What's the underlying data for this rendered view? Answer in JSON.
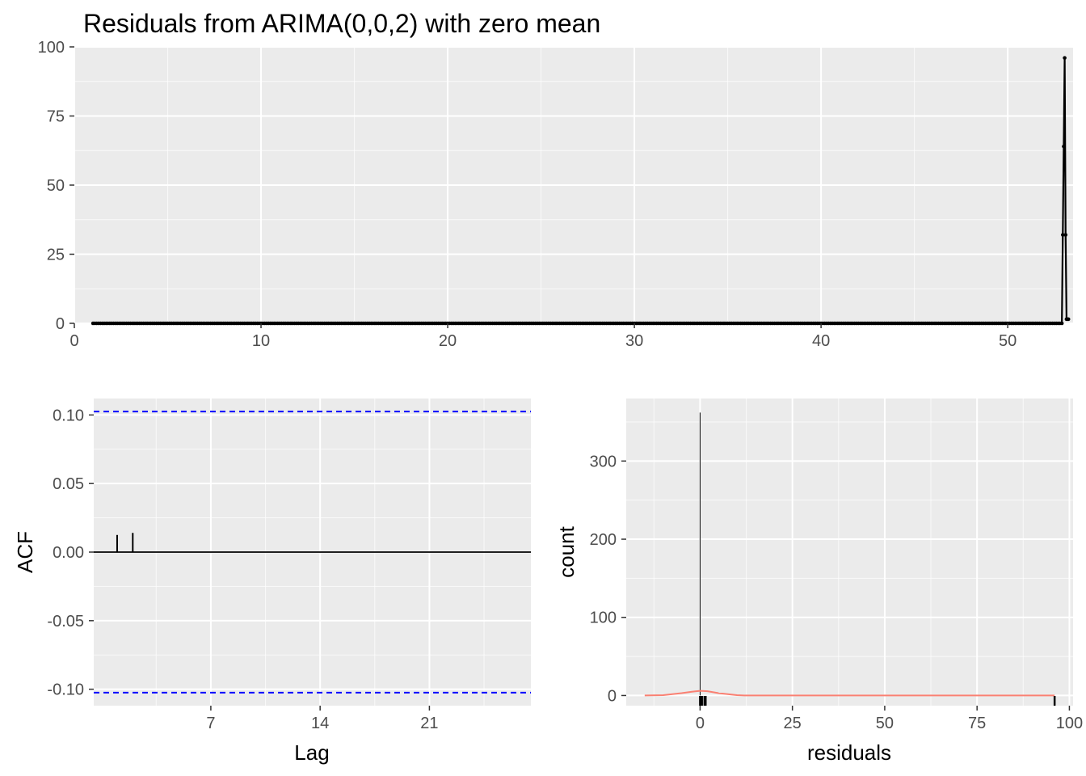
{
  "title": "Residuals from ARIMA(0,0,2) with zero mean",
  "chart_data": [
    {
      "id": "residual-series",
      "type": "line",
      "title": "Residuals from ARIMA(0,0,2) with zero mean",
      "xlabel": "",
      "ylabel": "",
      "xlim": [
        0,
        53.5
      ],
      "ylim": [
        0,
        100
      ],
      "xticks": [
        0,
        10,
        20,
        30,
        40,
        50
      ],
      "yticks": [
        0,
        25,
        50,
        75,
        100
      ],
      "grid": true,
      "line_color": "#000000",
      "x_start": 1,
      "x_step": 0.1,
      "flat_count": 519,
      "flat_value": 0,
      "tail_points": [
        [
          52.9,
          0
        ],
        [
          52.95,
          32
        ],
        [
          53.0,
          64
        ],
        [
          53.05,
          96
        ],
        [
          53.1,
          32
        ],
        [
          53.15,
          1.5
        ],
        [
          53.2,
          1.5
        ],
        [
          53.25,
          1.5
        ]
      ]
    },
    {
      "id": "acf",
      "type": "bar",
      "xlabel": "Lag",
      "ylabel": "ACF",
      "xlim": [
        -0.5,
        27.5
      ],
      "ylim": [
        -0.112,
        0.112
      ],
      "xticks": [
        7,
        14,
        21
      ],
      "yticks": [
        -0.1,
        -0.05,
        0.0,
        0.05,
        0.1
      ],
      "ytick_labels": [
        "-0.10",
        "-0.05",
        "0.00",
        "0.05",
        "0.10"
      ],
      "lags": [
        1,
        2
      ],
      "values": [
        0.0125,
        0.014
      ],
      "confidence_limit": 0.1025,
      "confidence_color": "#0000FF",
      "grid": true
    },
    {
      "id": "histogram",
      "type": "bar",
      "xlabel": "residuals",
      "ylabel": "count",
      "xlim": [
        -20,
        101
      ],
      "ylim": [
        -13,
        380
      ],
      "xticks": [
        0,
        25,
        50,
        75,
        100
      ],
      "yticks": [
        0,
        100,
        200,
        300
      ],
      "bins": [
        {
          "x": 0,
          "count": 362
        }
      ],
      "density_color": "#FA8072",
      "density_curve": [
        [
          -15,
          0
        ],
        [
          -10,
          0.5
        ],
        [
          -5,
          3
        ],
        [
          -2,
          5
        ],
        [
          0,
          6
        ],
        [
          2,
          5.5
        ],
        [
          5,
          3
        ],
        [
          8,
          1.5
        ],
        [
          10,
          0.5
        ],
        [
          12,
          0
        ],
        [
          96,
          0
        ]
      ],
      "rug": [
        0,
        0.3,
        0.5,
        1.2,
        1.5,
        96
      ],
      "grid": true
    }
  ]
}
